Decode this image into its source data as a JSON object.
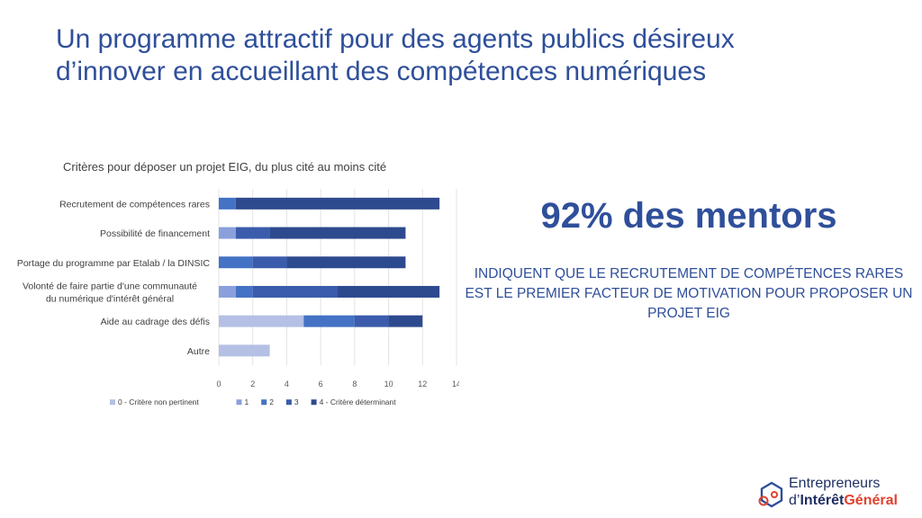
{
  "slide": {
    "title_line1": "Un programme attractif pour des agents publics désireux",
    "title_line2": "d’innover en accueillant des compétences numériques"
  },
  "highlight": {
    "stat": "92% des mentors",
    "description": "INDIQUENT QUE LE RECRUTEMENT DE COMPÉTENCES RARES EST LE PREMIER FACTEUR DE MOTIVATION POUR PROPOSER UN PROJET EIG"
  },
  "logo": {
    "line1": "Entrepreneurs",
    "line2_prefix": "d’",
    "line2_strong": "Intérêt",
    "line2_accent": "Général"
  },
  "colors": {
    "title": "#2f4f9a",
    "series": [
      "#b4c0e4",
      "#8aa0dc",
      "#4472c4",
      "#3b5cac",
      "#2e4a8e"
    ]
  },
  "chart_data": {
    "type": "bar",
    "orientation": "horizontal",
    "stacked": true,
    "title": "Critères pour déposer un projet EIG, du plus cité au moins cité",
    "categories": [
      "Recrutement de compétences rares",
      "Possibilité de financement",
      "Portage du programme par Etalab / la DINSIC",
      "Volonté de faire partie d'une communauté du numérique d'intérêt général",
      "Aide au cadrage des défis",
      "Autre"
    ],
    "series": [
      {
        "name": "0 - Critère non pertinent",
        "values": [
          0,
          0,
          0,
          0,
          5,
          3
        ]
      },
      {
        "name": "1",
        "values": [
          0,
          1,
          0,
          1,
          0,
          0
        ]
      },
      {
        "name": "2",
        "values": [
          1,
          0,
          2,
          1,
          3,
          0
        ]
      },
      {
        "name": "3",
        "values": [
          0,
          2,
          2,
          5,
          2,
          0
        ]
      },
      {
        "name": "4 - Critère déterminant",
        "values": [
          12,
          8,
          7,
          6,
          2,
          0
        ]
      }
    ],
    "xlim": [
      0,
      14
    ],
    "xticks": [
      0,
      2,
      4,
      6,
      8,
      10,
      12,
      14
    ],
    "grid": true,
    "legend_position": "bottom"
  }
}
